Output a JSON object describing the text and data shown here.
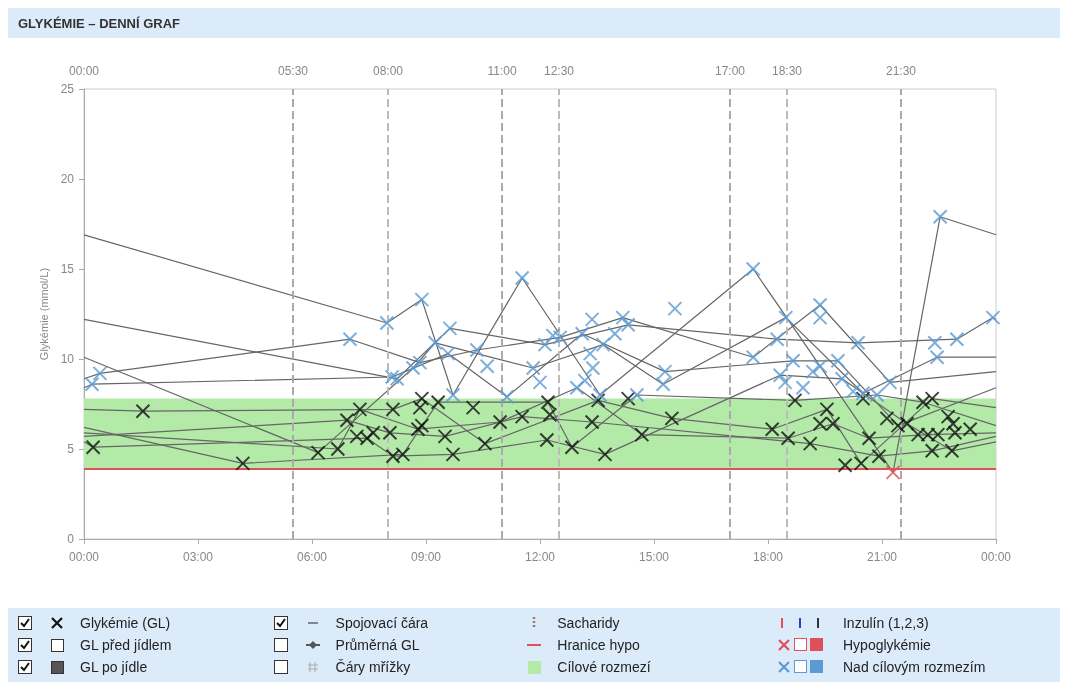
{
  "chart_data": {
    "type": "scatter",
    "title": "GLYKÉMIE – DENNÍ GRAF",
    "ylabel": "Glykémie (mmol/L)",
    "xlim": [
      0,
      24
    ],
    "xticks": [
      {
        "value": 0,
        "label": "00:00"
      },
      {
        "value": 3,
        "label": "03:00"
      },
      {
        "value": 6,
        "label": "06:00"
      },
      {
        "value": 9,
        "label": "09:00"
      },
      {
        "value": 12,
        "label": "12:00"
      },
      {
        "value": 15,
        "label": "15:00"
      },
      {
        "value": 18,
        "label": "18:00"
      },
      {
        "value": 21,
        "label": "21:00"
      },
      {
        "value": 24,
        "label": "00:00"
      }
    ],
    "x2lim": [
      0,
      24
    ],
    "x2ticks": [
      {
        "value": 0,
        "label": "00:00"
      },
      {
        "value": 5.5,
        "label": "05:30"
      },
      {
        "value": 8,
        "label": "08:00"
      },
      {
        "value": 11,
        "label": "11:00"
      },
      {
        "value": 12.5,
        "label": "12:30"
      },
      {
        "value": 17,
        "label": "17:00"
      },
      {
        "value": 18.5,
        "label": "18:30"
      },
      {
        "value": 21.5,
        "label": "21:30"
      }
    ],
    "ylim": [
      0,
      25
    ],
    "yticks": [
      0,
      5,
      10,
      15,
      20,
      25
    ],
    "grid": false,
    "legend": "bottom",
    "marker": "cross",
    "ref_lines": [
      {
        "axis": "x",
        "value": 5.5,
        "color": "#aaaaaa",
        "line_style": "dashed"
      },
      {
        "axis": "x",
        "value": 8,
        "color": "#bbbbbb",
        "line_style": "dashed"
      },
      {
        "axis": "x",
        "value": 11,
        "color": "#aaaaaa",
        "line_style": "dashed"
      },
      {
        "axis": "x",
        "value": 12.5,
        "color": "#bbbbbb",
        "line_style": "dashed"
      },
      {
        "axis": "x",
        "value": 17,
        "color": "#aaaaaa",
        "line_style": "dashed"
      },
      {
        "axis": "x",
        "value": 18.5,
        "color": "#bbbbbb",
        "line_style": "dashed"
      },
      {
        "axis": "x",
        "value": 21.5,
        "color": "#aaaaaa",
        "line_style": "dashed"
      },
      {
        "axis": "y",
        "value": 3.9,
        "label": "Hranice hypo",
        "color": "#e0505a",
        "line_style": "solid"
      }
    ],
    "bands": [
      {
        "axis": "y",
        "from": 3.9,
        "to": 7.8,
        "label": "Cílové rozmezí",
        "color": "#b3eaa8"
      }
    ],
    "annotations": [
      "GL před jídlem",
      "GL po jídle",
      "Průměrná GL",
      "Čáry mřížky",
      "Sacharidy",
      "Inzulín (1,2,3)"
    ],
    "series": [
      {
        "type": "line",
        "marker": "none",
        "name": "Spojovací čára",
        "color": "#666666",
        "x": [
          0,
          7.97,
          8.89,
          9.71,
          11.53,
          13.58,
          17.61,
          19.37,
          21.29,
          22.53,
          24
        ],
        "values": [
          16.9,
          12.0,
          13.3,
          8.0,
          14.5,
          8.0,
          15.0,
          9.6,
          3.7,
          17.9,
          16.9
        ]
      },
      {
        "type": "line",
        "marker": "none",
        "color": "#666666",
        "x": [
          0,
          8.24,
          9.63,
          12.13,
          14.32,
          18.24,
          20.37,
          22.97,
          23.92,
          24
        ],
        "values": [
          12.2,
          8.9,
          11.7,
          10.8,
          11.9,
          11.1,
          10.9,
          11.1,
          12.3,
          12.2
        ]
      },
      {
        "type": "line",
        "marker": "none",
        "color": "#666666",
        "x": [
          0,
          6.16,
          8.66,
          9.24,
          11.82,
          13.66,
          15.24,
          18.47,
          20.5,
          22.45,
          24
        ],
        "values": [
          10.1,
          4.8,
          9.5,
          10.9,
          9.5,
          10.8,
          8.6,
          12.3,
          8.1,
          10.1,
          10.1
        ]
      },
      {
        "type": "line",
        "marker": "none",
        "color": "#666666",
        "x": [
          0,
          0.42,
          7.0,
          8.84,
          10.34,
          12.53,
          14.18,
          17.61,
          19.37,
          21.21,
          24
        ],
        "values": [
          8.9,
          9.2,
          11.1,
          9.8,
          10.5,
          11.2,
          12.3,
          10.1,
          13.0,
          8.7,
          9.3
        ]
      },
      {
        "type": "line",
        "marker": "none",
        "color": "#666666",
        "x": [
          0,
          0.21,
          8.11,
          9.58,
          11.13,
          13.11,
          15.29,
          18.66,
          19.84,
          21.42,
          24
        ],
        "values": [
          8.4,
          8.6,
          9.0,
          10.3,
          7.9,
          11.4,
          9.3,
          9.9,
          9.9,
          6.3,
          8.4
        ]
      },
      {
        "type": "line",
        "marker": "none",
        "color": "#666666",
        "x": [
          0,
          1.55,
          8.13,
          8.89,
          10.55,
          13.53,
          15.47,
          18.11,
          19.55,
          20.45,
          22.32,
          24
        ],
        "values": [
          7.2,
          7.1,
          7.2,
          7.8,
          5.3,
          7.7,
          6.7,
          6.1,
          7.2,
          4.2,
          7.8,
          7.3
        ]
      },
      {
        "type": "line",
        "marker": "none",
        "color": "#666666",
        "x": [
          0,
          4.18,
          8.39,
          9.32,
          12.21,
          12.84,
          14.55,
          18.71,
          20.87,
          22.08,
          24
        ],
        "values": [
          6.2,
          4.2,
          4.7,
          7.6,
          7.6,
          5.1,
          8.0,
          7.7,
          8.0,
          7.6,
          6.3
        ]
      },
      {
        "type": "line",
        "marker": "none",
        "color": "#666666",
        "x": [
          0,
          6.68,
          7.26,
          8.79,
          10.95,
          12.97,
          14.68,
          18.53,
          19.71,
          20.66,
          22.21,
          24
        ],
        "values": [
          5.9,
          5.0,
          7.2,
          6.1,
          6.5,
          8.4,
          5.8,
          5.6,
          6.4,
          5.6,
          5.8,
          5.9
        ]
      },
      {
        "type": "line",
        "marker": "none",
        "color": "#666666",
        "x": [
          0,
          6.92,
          8.05,
          9.5,
          11.53,
          13.37,
          19.11,
          20.92,
          22.32,
          24
        ],
        "values": [
          5.7,
          6.6,
          5.9,
          5.7,
          6.8,
          6.5,
          5.3,
          4.6,
          4.9,
          5.7
        ]
      },
      {
        "type": "line",
        "marker": "none",
        "color": "#666666",
        "x": [
          0,
          0.24,
          7.45,
          8.13,
          9.71,
          12.18,
          13.71,
          18.32,
          19.95,
          21.66,
          22.84,
          24
        ],
        "values": [
          5.4,
          5.1,
          5.6,
          4.6,
          4.7,
          5.5,
          4.7,
          9.1,
          8.9,
          6.4,
          4.9,
          5.4
        ]
      },
      {
        "name": "Glykémie (GL)",
        "color": "#111111",
        "x": [
          0.24,
          1.55,
          4.18,
          6.16,
          6.68,
          6.92,
          7.26,
          7.18,
          7.45,
          7.61,
          8.05,
          8.13,
          8.13,
          8.39,
          8.89,
          8.84,
          9.32,
          8.79,
          8.89,
          9.5,
          9.71,
          10.24,
          10.55,
          10.95,
          11.53,
          12.21,
          12.26,
          12.18,
          12.84,
          13.71,
          13.37,
          13.53,
          14.32,
          14.68,
          15.47,
          18.71,
          18.11,
          18.53,
          19.11,
          19.55,
          19.37,
          19.71,
          20.66,
          20.03,
          20.45,
          20.92,
          21.13,
          20.5,
          21.42,
          21.66,
          21.95,
          22.08,
          22.32,
          22.74,
          22.87,
          22.92,
          23.32,
          22.21,
          22.47,
          22.32,
          22.84
        ],
        "values": [
          5.1,
          7.1,
          4.2,
          4.8,
          5.0,
          6.6,
          7.2,
          5.7,
          5.6,
          5.9,
          5.9,
          7.2,
          4.6,
          4.7,
          7.8,
          7.3,
          7.6,
          6.1,
          6.3,
          5.7,
          4.7,
          7.3,
          5.3,
          6.5,
          6.8,
          7.6,
          6.9,
          5.5,
          5.1,
          4.7,
          6.5,
          7.7,
          7.8,
          5.8,
          6.7,
          7.7,
          6.1,
          5.6,
          5.3,
          7.2,
          6.4,
          6.4,
          5.6,
          4.1,
          4.2,
          4.6,
          6.7,
          7.8,
          6.3,
          6.4,
          5.8,
          7.6,
          7.8,
          6.8,
          6.4,
          5.9,
          6.1,
          5.8,
          5.8,
          4.9,
          4.9
        ]
      },
      {
        "name": "Nad cílovým rozmezím",
        "color": "#5b9bd5",
        "x": [
          0.21,
          0.42,
          7.0,
          7.97,
          8.11,
          8.24,
          8.66,
          8.84,
          8.89,
          9.24,
          9.58,
          9.63,
          9.71,
          10.34,
          10.61,
          11.13,
          11.53,
          11.82,
          12.0,
          12.13,
          12.34,
          12.53,
          12.97,
          13.11,
          13.18,
          13.32,
          13.37,
          13.39,
          13.58,
          13.66,
          13.97,
          14.18,
          14.32,
          14.55,
          15.24,
          15.29,
          15.55,
          17.61,
          17.61,
          18.24,
          18.32,
          18.45,
          18.47,
          18.66,
          18.92,
          19.18,
          19.37,
          19.37,
          19.37,
          19.84,
          19.95,
          20.24,
          20.37,
          20.5,
          20.87,
          21.21,
          22.39,
          22.45,
          22.53,
          22.97,
          23.92
        ],
        "values": [
          8.6,
          9.2,
          11.1,
          12.0,
          9.0,
          8.9,
          9.5,
          9.8,
          13.3,
          10.9,
          10.3,
          11.7,
          8.0,
          10.5,
          9.6,
          7.9,
          14.5,
          9.5,
          8.7,
          10.8,
          11.3,
          11.2,
          8.4,
          11.4,
          8.8,
          10.3,
          12.2,
          9.5,
          8.0,
          10.8,
          11.4,
          12.3,
          11.9,
          8.0,
          8.6,
          9.3,
          12.8,
          15.0,
          10.1,
          11.1,
          9.1,
          8.7,
          12.3,
          9.9,
          8.4,
          9.3,
          13.0,
          12.3,
          9.6,
          9.9,
          8.9,
          8.2,
          10.9,
          8.1,
          8.0,
          8.7,
          10.9,
          10.1,
          17.9,
          11.1,
          12.3
        ]
      },
      {
        "name": "Hypoglykémie",
        "color": "#e0505a",
        "x": [
          21.29
        ],
        "values": [
          3.7
        ]
      }
    ]
  }
}
